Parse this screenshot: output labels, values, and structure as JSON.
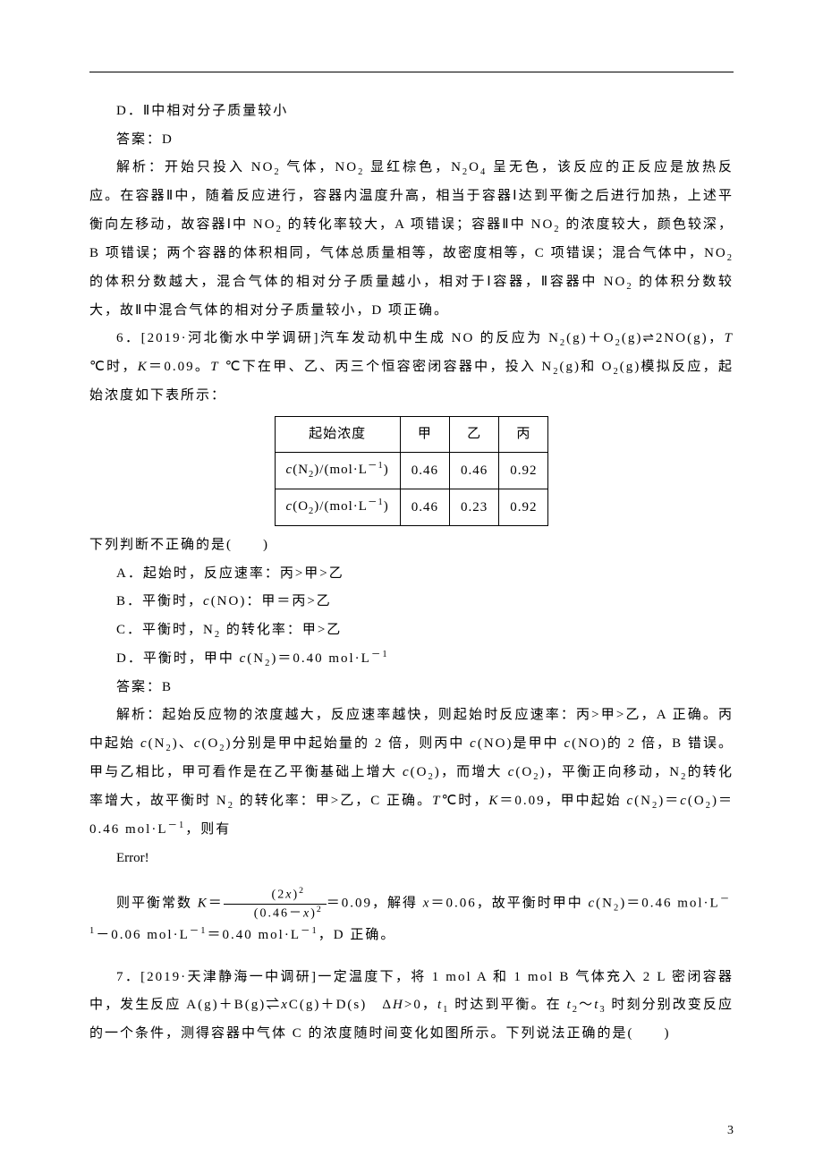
{
  "p1": "D．Ⅱ中相对分子质量较小",
  "p2": "答案：D",
  "p3_a": "解析：开始只投入 NO",
  "p3_b": " 气体，NO",
  "p3_c": " 显红棕色，N",
  "p3_d": "O",
  "p3_e": " 呈无色，该反应的正反应是放热反应。在容器Ⅱ中，随着反应进行，容器内温度升高，相当于容器Ⅰ达到平衡之后进行加热，上述平衡向左移动，故容器Ⅰ中 NO",
  "p3_f": " 的转化率较大，A 项错误；容器Ⅱ中 NO",
  "p3_g": " 的浓度较大，颜色较深，B 项错误；两个容器的体积相同，气体总质量相等，故密度相等，C 项错误；混合气体中，NO",
  "p3_h": " 的体积分数越大，混合气体的相对分子质量越小，相对于Ⅰ容器，Ⅱ容器中 NO",
  "p3_i": " 的体积分数较大，故Ⅱ中混合气体的相对分子质量较小，D 项正确。",
  "q6_a": "6．[2019·河北衡水中学调研]汽车发动机中生成 NO 的反应为 N",
  "q6_b": "(g)＋O",
  "q6_c": "(g)⇌2NO(g)，",
  "q6_d": " ℃时，",
  "q6_e": "＝0.09。",
  "q6_f": " ℃下在甲、乙、丙三个恒容密闭容器中，投入 N",
  "q6_g": "(g)和 O",
  "q6_h": "(g)模拟反应，起始浓度如下表所示：",
  "table": {
    "headers": [
      "起始浓度",
      "甲",
      "乙",
      "丙"
    ],
    "row1_label_a": "c",
    "row1_label_b": "(N",
    "row1_label_c": ")/(mol·L",
    "row1_label_d": ")",
    "row1": [
      "0.46",
      "0.46",
      "0.92"
    ],
    "row2_label_a": "c",
    "row2_label_b": "(O",
    "row2_label_c": ")/(mol·L",
    "row2_label_d": ")",
    "row2": [
      "0.46",
      "0.23",
      "0.92"
    ]
  },
  "q6_stem": "下列判断不正确的是(　　)",
  "optA": "A．起始时，反应速率：丙>甲>乙",
  "optB_a": "B．平衡时，",
  "optB_b": "(NO)：甲＝丙>乙",
  "optC_a": "C．平衡时，N",
  "optC_b": " 的转化率：甲>乙",
  "optD_a": "D．平衡时，甲中 ",
  "optD_b": "(N",
  "optD_c": ")＝0.40 mol·L",
  "ans6": "答案：B",
  "exp6_a": "解析：起始反应物的浓度越大，反应速率越快，则起始时反应速率：丙>甲>乙，A 正确。丙中起始 ",
  "exp6_b": "(N",
  "exp6_c": ")、",
  "exp6_d": "(O",
  "exp6_e": ")分别是甲中起始量的 2 倍，则丙中 ",
  "exp6_f": "(NO)是甲中 ",
  "exp6_g": "(NO)的 2 倍，B 错误。甲与乙相比，甲可看作是在乙平衡基础上增大 ",
  "exp6_h": "(O",
  "exp6_i": ")，而增大 ",
  "exp6_j": "(O",
  "exp6_k": ")，平衡正向移动，N",
  "exp6_l": "的转化率增大，故平衡时 N",
  "exp6_m": " 的转化率：甲>乙，C 正确。",
  "exp6_n": "℃时，",
  "exp6_o": "＝0.09，甲中起始 ",
  "exp6_p": "(N",
  "exp6_q": ")＝",
  "exp6_r": "(O",
  "exp6_s": ")＝0.46 mol·L",
  "exp6_t": "，则有",
  "error": "Error!",
  "eq_a": "则平衡常数 ",
  "eq_b": "＝",
  "eq_num_a": "(2",
  "eq_num_b": ")",
  "eq_den_a": "(0.46－",
  "eq_den_b": ")",
  "eq_c": "＝0.09，解得 ",
  "eq_d": "＝0.06，故平衡时甲中 ",
  "eq_e": "(N",
  "eq_f": ")＝0.46 mol·L",
  "eq_g": "－0.06 mol·L",
  "eq_h": "＝0.40 mol·L",
  "eq_i": "，D 正确。",
  "q7_a": "7．[2019·天津静海一中调研]一定温度下，将 1 mol A 和 1 mol B 气体充入 2 L 密闭容器中，发生反应 A(g)＋B(g)⇌",
  "q7_b": "C(g)＋D(s)　Δ",
  "q7_c": ">0，",
  "q7_d": " 时达到平衡。在 ",
  "q7_e": "～",
  "q7_f": " 时刻分别改变反应的一个条件，测得容器中气体 C 的浓度随时间变化如图所示。下列说法正确的是(　　)",
  "pagenum": "3"
}
